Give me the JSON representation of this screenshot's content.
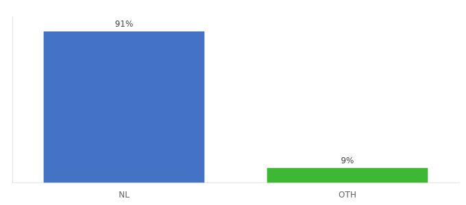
{
  "chart_data": {
    "type": "bar",
    "categories": [
      "NL",
      "OTH"
    ],
    "values": [
      91,
      9
    ],
    "colors": [
      "#4472c4",
      "#3cb832"
    ],
    "data_labels": true,
    "value_labels": [
      "91%",
      "9%"
    ],
    "ylim": [
      0,
      100
    ],
    "yticks": [],
    "tick_labels": "x",
    "grid": false
  }
}
